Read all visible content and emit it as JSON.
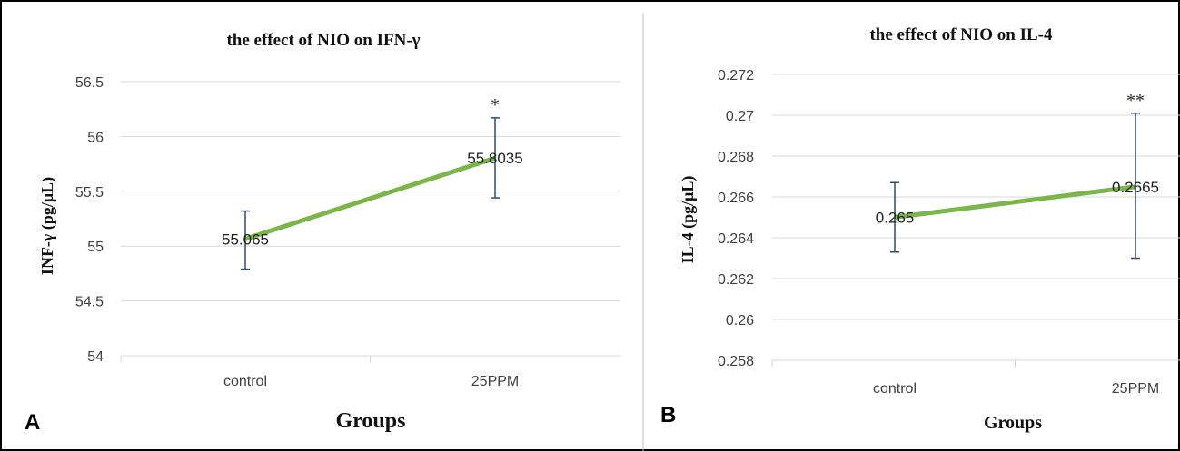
{
  "chart_data": [
    {
      "type": "line",
      "panel_label": "A",
      "title": "the effect of NIO on IFN-γ",
      "xlabel": "Groups",
      "ylabel": "INF-γ (pg/μL)",
      "categories": [
        "control",
        "25PPM"
      ],
      "values": [
        55.065,
        55.8035
      ],
      "value_labels": [
        "55.065",
        "55.8035"
      ],
      "error_low": [
        54.79,
        55.44
      ],
      "error_high": [
        55.32,
        56.17
      ],
      "significance": [
        "",
        "*"
      ],
      "ylim": [
        54,
        56.5
      ],
      "yticks": [
        54,
        54.5,
        55,
        55.5,
        56,
        56.5
      ],
      "ytick_labels": [
        "54",
        "54.5",
        "55",
        "55.5",
        "56",
        "56.5"
      ],
      "grid": true,
      "line_color": "#7ab648",
      "error_color": "#2e4a72"
    },
    {
      "type": "line",
      "panel_label": "B",
      "title": "the effect of NIO on IL-4",
      "xlabel": "Groups",
      "ylabel": "IL-4 (pg/μL)",
      "categories": [
        "control",
        "25PPM"
      ],
      "values": [
        0.265,
        0.2665
      ],
      "value_labels": [
        "0.265",
        "0.2665"
      ],
      "error_low": [
        0.2633,
        0.263
      ],
      "error_high": [
        0.2667,
        0.2701
      ],
      "significance": [
        "",
        "**"
      ],
      "ylim": [
        0.258,
        0.272
      ],
      "yticks": [
        0.258,
        0.26,
        0.262,
        0.264,
        0.266,
        0.268,
        0.27,
        0.272
      ],
      "ytick_labels": [
        "0.258",
        "0.26",
        "0.262",
        "0.264",
        "0.266",
        "0.268",
        "0.27",
        "0.272"
      ],
      "grid": true,
      "line_color": "#7ab648",
      "error_color": "#2e4a72"
    }
  ]
}
